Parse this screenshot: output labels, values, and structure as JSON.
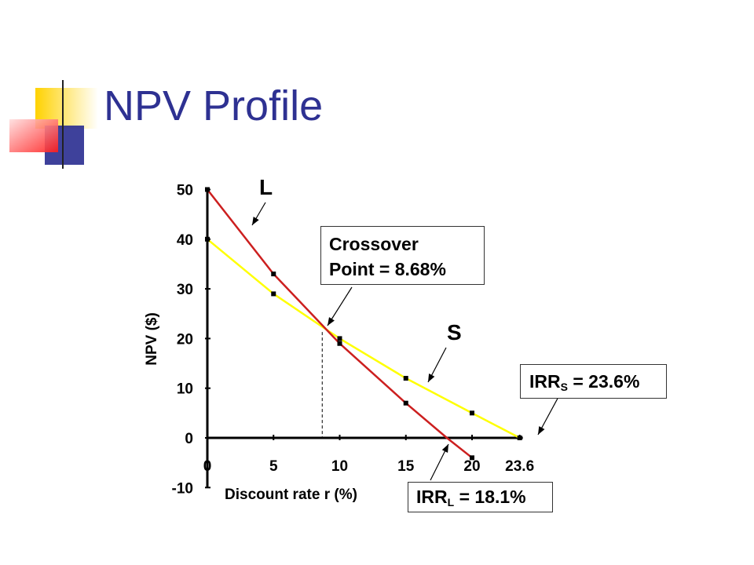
{
  "slide": {
    "title": "NPV Profile",
    "colors": {
      "title": "#2e3192",
      "accent_yellow": "#ffd200",
      "accent_blue": "#2e3192",
      "accent_red": "#ff2020"
    }
  },
  "chart_data": {
    "type": "line",
    "xlabel": "Discount rate r (%)",
    "ylabel": "NPV ($)",
    "x_ticks": [
      "0",
      "5",
      "10",
      "15",
      "20",
      "23.6"
    ],
    "y_ticks": [
      "-10",
      "0",
      "10",
      "20",
      "30",
      "40",
      "50"
    ],
    "ylim": [
      -10,
      50
    ],
    "xlim": [
      0,
      23.6
    ],
    "grid": false,
    "series": [
      {
        "name": "L",
        "color": "#cc1f1f",
        "x": [
          0,
          5,
          10,
          15,
          18.1,
          20
        ],
        "y": [
          50,
          33,
          19,
          7,
          0,
          -4
        ]
      },
      {
        "name": "S",
        "color": "#ffff00",
        "x": [
          0,
          5,
          10,
          15,
          20,
          23.6
        ],
        "y": [
          40,
          29,
          20,
          12,
          5,
          0
        ]
      }
    ],
    "annotations": {
      "crossover_line1": "Crossover",
      "crossover_line2": "Point  =  8.68%",
      "irr_s_main": "IRR",
      "irr_s_sub": "S",
      "irr_s_value": " = 23.6%",
      "irr_l_main": "IRR",
      "irr_l_sub": "L",
      "irr_l_value": " = 18.1%"
    },
    "crossover": {
      "x": 8.68,
      "y": 21.3
    },
    "irr_s": {
      "x": 23.6,
      "y": 0
    },
    "irr_l": {
      "x": 18.1,
      "y": 0
    }
  }
}
